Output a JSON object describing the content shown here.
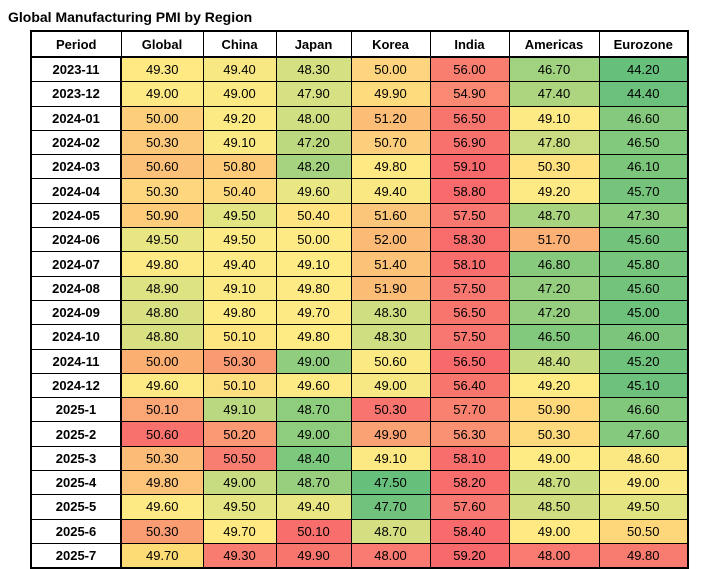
{
  "title": "Global Manufacturing PMI by Region",
  "chart_data": {
    "type": "heatmap",
    "title": "Global Manufacturing PMI by Region",
    "columns": [
      "Period",
      "Global",
      "China",
      "Japan",
      "Korea",
      "India",
      "Americas",
      "Eurozone"
    ],
    "value_columns": [
      "Global",
      "China",
      "Japan",
      "Korea",
      "India",
      "Americas",
      "Eurozone"
    ],
    "color_scale": {
      "low_green": "#63BE7B",
      "mid_yellow": "#FFEB84",
      "high_red": "#F8696B"
    },
    "rows": [
      {
        "period": "2023-11",
        "values": [
          "49.30",
          "49.40",
          "48.30",
          "50.00",
          "56.00",
          "46.70",
          "44.20"
        ],
        "colors": [
          "#FFE983",
          "#F8E883",
          "#D4E081",
          "#FED57E",
          "#F97E70",
          "#A0D27F",
          "#66BF7B"
        ]
      },
      {
        "period": "2023-12",
        "values": [
          "49.00",
          "49.00",
          "47.90",
          "49.90",
          "54.90",
          "47.40",
          "44.40"
        ],
        "colors": [
          "#FEEA84",
          "#FBE983",
          "#D7E082",
          "#FEDC7E",
          "#F98972",
          "#ADD580",
          "#6BC07B"
        ]
      },
      {
        "period": "2024-01",
        "values": [
          "50.00",
          "49.20",
          "48.00",
          "51.20",
          "56.50",
          "49.10",
          "46.60"
        ],
        "colors": [
          "#FDCF7B",
          "#FCEA84",
          "#CFDF81",
          "#FCBD77",
          "#F8756E",
          "#FEEA84",
          "#84C97D"
        ]
      },
      {
        "period": "2024-02",
        "values": [
          "50.30",
          "49.10",
          "47.20",
          "50.70",
          "56.90",
          "47.80",
          "46.50"
        ],
        "colors": [
          "#FCC87A",
          "#FBE983",
          "#BCD980",
          "#FDCE7B",
          "#F8716D",
          "#C9DC81",
          "#82C87D"
        ]
      },
      {
        "period": "2024-03",
        "values": [
          "50.60",
          "50.80",
          "48.20",
          "49.80",
          "59.10",
          "50.30",
          "46.10"
        ],
        "colors": [
          "#FCC179",
          "#FDCA7A",
          "#A5D37F",
          "#FEE983",
          "#F8696B",
          "#FFE180",
          "#7CC67C"
        ]
      },
      {
        "period": "2024-04",
        "values": [
          "50.30",
          "50.40",
          "49.60",
          "49.40",
          "58.80",
          "49.20",
          "45.70"
        ],
        "colors": [
          "#FDD67D",
          "#FED97E",
          "#E9E783",
          "#FAE983",
          "#F86A6B",
          "#FEEA84",
          "#76C47C"
        ]
      },
      {
        "period": "2024-05",
        "values": [
          "50.90",
          "49.50",
          "50.40",
          "51.60",
          "57.50",
          "48.70",
          "47.30"
        ],
        "colors": [
          "#FDCC7B",
          "#E3E482",
          "#FFE481",
          "#FCC67A",
          "#F87770",
          "#A9D47F",
          "#8ACB7D"
        ]
      },
      {
        "period": "2024-06",
        "values": [
          "49.50",
          "49.50",
          "50.00",
          "52.00",
          "58.30",
          "51.70",
          "45.60"
        ],
        "colors": [
          "#E8E683",
          "#FCEA84",
          "#FEEA84",
          "#FBBA76",
          "#F86C6C",
          "#FBB175",
          "#74C37C"
        ]
      },
      {
        "period": "2024-07",
        "values": [
          "49.80",
          "49.40",
          "49.10",
          "51.40",
          "58.10",
          "46.80",
          "45.80"
        ],
        "colors": [
          "#FEEA84",
          "#FDEA84",
          "#FEEB84",
          "#FCC378",
          "#F86E6C",
          "#87CA7D",
          "#77C47C"
        ]
      },
      {
        "period": "2024-08",
        "values": [
          "48.90",
          "49.10",
          "49.80",
          "51.90",
          "57.50",
          "47.20",
          "45.60"
        ],
        "colors": [
          "#DDE282",
          "#FBE983",
          "#FEEA84",
          "#FBBC76",
          "#F87770",
          "#94CE7E",
          "#74C37C"
        ]
      },
      {
        "period": "2024-09",
        "values": [
          "48.80",
          "49.80",
          "49.70",
          "48.30",
          "56.50",
          "47.20",
          "45.00"
        ],
        "colors": [
          "#D9E082",
          "#FEEB84",
          "#FEEA84",
          "#CEDE81",
          "#F8756E",
          "#94CE7E",
          "#6DC17B"
        ]
      },
      {
        "period": "2024-10",
        "values": [
          "48.80",
          "50.10",
          "49.80",
          "48.30",
          "57.50",
          "46.50",
          "46.00"
        ],
        "colors": [
          "#D9E082",
          "#FFE580",
          "#FEEB84",
          "#CEDE81",
          "#F87770",
          "#82C87D",
          "#7BC67C"
        ]
      },
      {
        "period": "2024-11",
        "values": [
          "50.00",
          "50.30",
          "49.00",
          "50.60",
          "56.50",
          "48.40",
          "45.20"
        ],
        "colors": [
          "#FBB071",
          "#FA9A73",
          "#90CD7E",
          "#FBE983",
          "#F8696B",
          "#C6DC81",
          "#6FC27C"
        ]
      },
      {
        "period": "2024-12",
        "values": [
          "49.60",
          "50.10",
          "49.60",
          "49.00",
          "56.40",
          "49.20",
          "45.10"
        ],
        "colors": [
          "#FEEA84",
          "#FEDF7F",
          "#FEEA84",
          "#F8E883",
          "#F8756E",
          "#FEEB84",
          "#6EC17C"
        ]
      },
      {
        "period": "2025-1",
        "values": [
          "50.10",
          "49.10",
          "48.70",
          "50.30",
          "57.70",
          "50.90",
          "46.60"
        ],
        "colors": [
          "#FBA675",
          "#B9D880",
          "#8FCD7E",
          "#F8746E",
          "#F9816F",
          "#FED87A",
          "#81C87C"
        ]
      },
      {
        "period": "2025-2",
        "values": [
          "50.60",
          "50.20",
          "49.00",
          "49.90",
          "56.30",
          "50.30",
          "47.60"
        ],
        "colors": [
          "#F8716D",
          "#FA9973",
          "#8FCD7E",
          "#FBA275",
          "#FA9173",
          "#FEDA7C",
          "#84C97D"
        ]
      },
      {
        "period": "2025-3",
        "values": [
          "50.30",
          "50.50",
          "48.40",
          "49.10",
          "58.10",
          "49.00",
          "48.60"
        ],
        "colors": [
          "#FCBB77",
          "#F87E71",
          "#7CC87D",
          "#FDE983",
          "#F86E6C",
          "#FEEB84",
          "#FBE883"
        ]
      },
      {
        "period": "2025-4",
        "values": [
          "49.80",
          "49.00",
          "48.70",
          "47.50",
          "58.20",
          "48.70",
          "49.00"
        ],
        "colors": [
          "#FCC379",
          "#C7DC81",
          "#98CF7E",
          "#66BF7B",
          "#F86D6C",
          "#CBDD81",
          "#FBE983"
        ]
      },
      {
        "period": "2025-5",
        "values": [
          "49.60",
          "49.50",
          "49.40",
          "47.70",
          "57.60",
          "48.50",
          "49.50"
        ],
        "colors": [
          "#FEEA84",
          "#E5E583",
          "#E9E683",
          "#70C27C",
          "#F87971",
          "#D0DE81",
          "#E2E482"
        ]
      },
      {
        "period": "2025-6",
        "values": [
          "50.30",
          "49.70",
          "50.10",
          "48.70",
          "58.40",
          "49.00",
          "50.50"
        ],
        "colors": [
          "#FA9D73",
          "#FEE982",
          "#F86E6C",
          "#D5DF82",
          "#F86A6B",
          "#FEE983",
          "#FED77B"
        ]
      },
      {
        "period": "2025-7",
        "values": [
          "49.70",
          "49.30",
          "49.90",
          "48.00",
          "59.20",
          "48.00",
          "49.80"
        ],
        "colors": [
          "#FDDC75",
          "#F87C70",
          "#F8756E",
          "#F87A70",
          "#F8696B",
          "#F87A70",
          "#F87B70"
        ]
      }
    ]
  }
}
